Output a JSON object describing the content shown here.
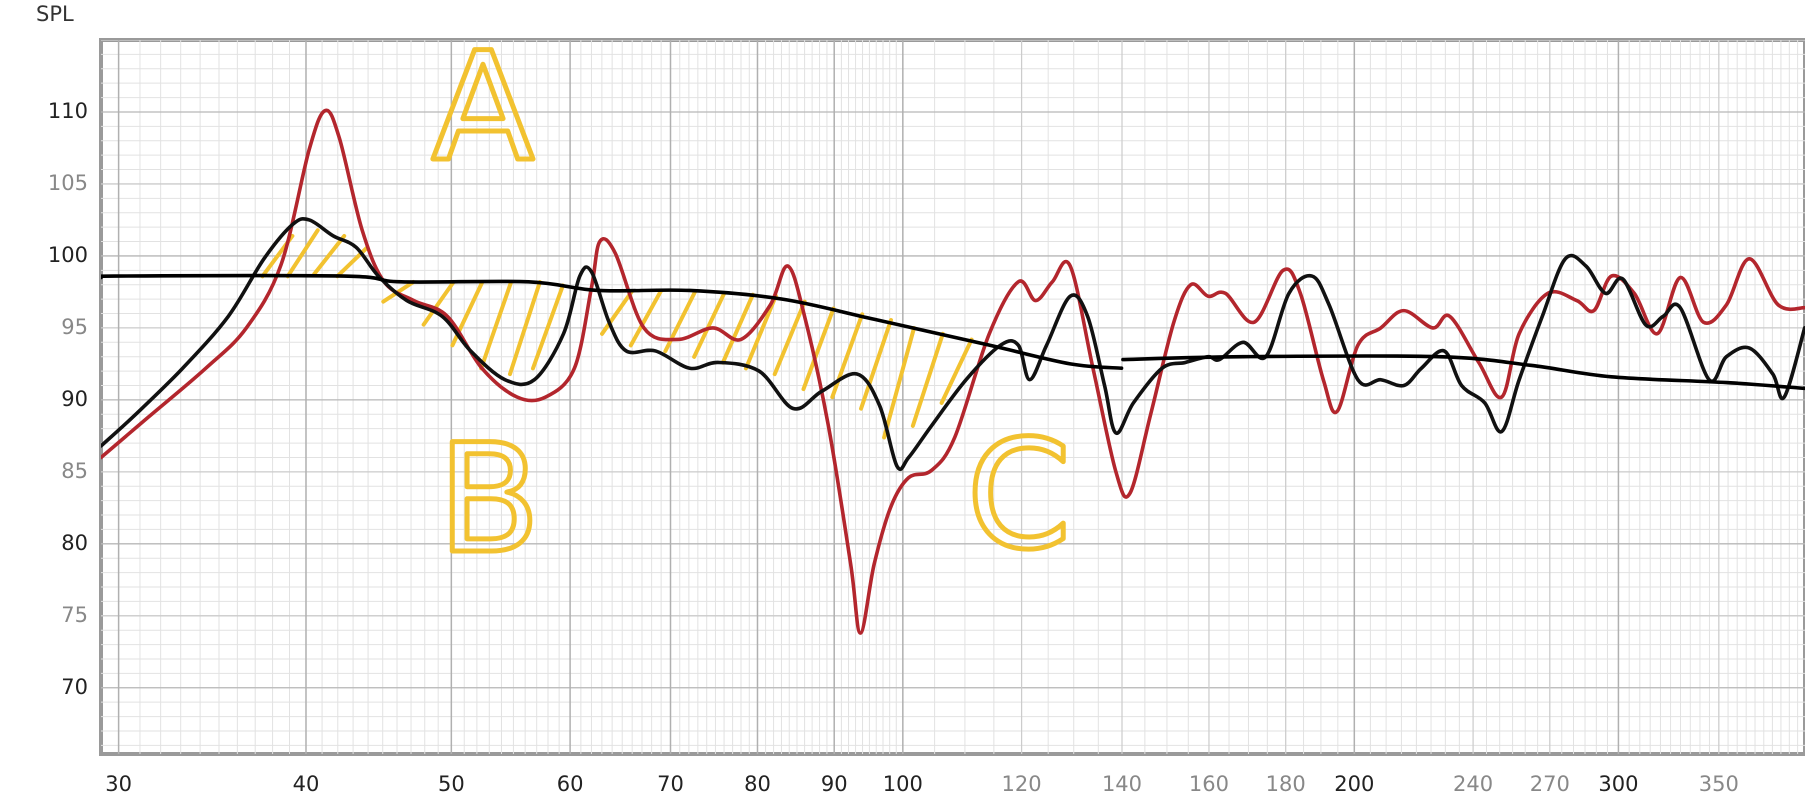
{
  "chart_data": {
    "type": "line",
    "y_label": "SPL",
    "x_scale": "log",
    "grid": true,
    "xlim": [
      29.2,
      399.5
    ],
    "ylim": [
      65.4,
      115.0
    ],
    "xticks": [
      30,
      40,
      50,
      60,
      70,
      80,
      90,
      100,
      120,
      140,
      160,
      180,
      200,
      240,
      270,
      300,
      350
    ],
    "yticks": [
      110,
      105,
      100,
      95,
      90,
      85,
      80,
      75,
      70
    ],
    "series": [
      {
        "color": "#b3262d",
        "x": [
          29.2,
          31.4,
          34.3,
          36.5,
          38.5,
          40.2,
          41.2,
          42.1,
          43.6,
          45.1,
          47.2,
          49.7,
          52.4,
          55.3,
          57.8,
          60.4,
          62.0,
          62.8,
          64.3,
          67.2,
          70.8,
          74.7,
          78.0,
          81.6,
          83.8,
          86.0,
          89.2,
          92.3,
          93.7,
          95.7,
          98.2,
          100.9,
          104.5,
          108.3,
          114.2,
          119.4,
          122.6,
          125.8,
          129.3,
          133.9,
          138.7,
          141.7,
          146.3,
          151.6,
          155.6,
          159.8,
          164.1,
          171.5,
          179.3,
          184.1,
          190.7,
          194.8,
          201.1,
          208.3,
          215.8,
          225.6,
          231.6,
          242.1,
          250.8,
          257.6,
          269.2,
          281.4,
          288.9,
          296.8,
          307.4,
          318.5,
          329.9,
          341.8,
          354.1,
          366.8,
          383.4,
          399.3
        ],
        "values": [
          86.0,
          88.8,
          92.2,
          95.0,
          99.4,
          107.4,
          110.1,
          108.2,
          101.8,
          98.2,
          96.9,
          95.8,
          92.2,
          90.2,
          90.2,
          92.2,
          97.8,
          101.0,
          100.2,
          95.0,
          94.2,
          95.0,
          94.2,
          96.6,
          99.3,
          95.8,
          88.2,
          78.6,
          73.8,
          78.6,
          82.6,
          84.6,
          85.1,
          87.4,
          94.6,
          98.2,
          96.9,
          98.2,
          99.3,
          92.2,
          85.0,
          83.5,
          89.0,
          95.4,
          98.0,
          97.2,
          97.4,
          95.4,
          99.0,
          97.4,
          91.4,
          89.2,
          93.8,
          95.0,
          96.2,
          95.0,
          95.8,
          92.6,
          90.2,
          94.6,
          97.4,
          96.9,
          96.2,
          98.6,
          97.4,
          94.6,
          98.5,
          95.4,
          96.6,
          99.8,
          96.6,
          96.4
        ]
      },
      {
        "color": "#111111",
        "x": [
          29.2,
          30.8,
          33.1,
          35.5,
          37.5,
          39.2,
          40.2,
          41.7,
          43.2,
          44.7,
          46.7,
          49.3,
          51.5,
          54.3,
          56.8,
          59.4,
          60.9,
          62.0,
          63.7,
          65.4,
          68.4,
          72.1,
          75.3,
          80.2,
          84.5,
          88.3,
          93.2,
          96.5,
          99.1,
          100.9,
          104.5,
          110.2,
          116.2,
          119.4,
          121.5,
          124.7,
          129.3,
          132.8,
          136.3,
          138.7,
          142.5,
          148.9,
          154.3,
          159.8,
          162.6,
          168.6,
          174.6,
          180.9,
          187.4,
          192.4,
          201.1,
          208.3,
          215.8,
          221.7,
          229.6,
          235.8,
          244.3,
          250.8,
          257.6,
          266.9,
          276.5,
          285.4,
          294.1,
          302.0,
          312.9,
          321.3,
          329.9,
          344.8,
          354.1,
          366.8,
          380.2,
          387.0,
          399.3
        ],
        "values": [
          86.8,
          89.0,
          92.2,
          95.8,
          99.8,
          102.2,
          102.5,
          101.4,
          100.6,
          98.6,
          96.9,
          95.8,
          93.4,
          91.4,
          91.4,
          94.6,
          98.6,
          98.9,
          95.4,
          93.4,
          93.4,
          92.2,
          92.6,
          92.0,
          89.4,
          90.6,
          91.8,
          89.6,
          85.4,
          86.0,
          88.2,
          91.4,
          93.8,
          93.8,
          91.4,
          93.8,
          97.2,
          95.8,
          91.0,
          87.7,
          89.8,
          92.2,
          92.6,
          93.0,
          92.8,
          94.0,
          93.0,
          97.4,
          98.6,
          96.6,
          91.4,
          91.4,
          91.0,
          92.2,
          93.4,
          91.0,
          89.8,
          87.8,
          91.4,
          95.8,
          99.8,
          99.3,
          97.4,
          98.4,
          95.2,
          95.8,
          96.4,
          91.4,
          93.0,
          93.6,
          91.8,
          90.2,
          95.0
        ]
      },
      {
        "color": "#000000",
        "x": [
          29.2,
          29.8,
          42.4,
          46.3,
          56.3,
          62.6,
          72.1,
          83.1,
          95.7,
          114.2,
          129.3,
          139.9,
          140.0,
          140.2,
          168.6,
          227.6,
          262.2,
          296.8,
          354.1,
          399.3
        ],
        "values": [
          98.5,
          98.6,
          98.6,
          98.2,
          98.2,
          97.6,
          97.6,
          97.0,
          95.6,
          93.8,
          92.5,
          92.2,
          null,
          92.8,
          93.0,
          93.0,
          92.4,
          91.6,
          91.2,
          90.8
        ]
      }
    ],
    "annotations": [
      {
        "text": "A",
        "color": "#f2c230"
      },
      {
        "text": "B",
        "color": "#f2c230"
      },
      {
        "text": "C",
        "color": "#f2c230"
      }
    ]
  }
}
